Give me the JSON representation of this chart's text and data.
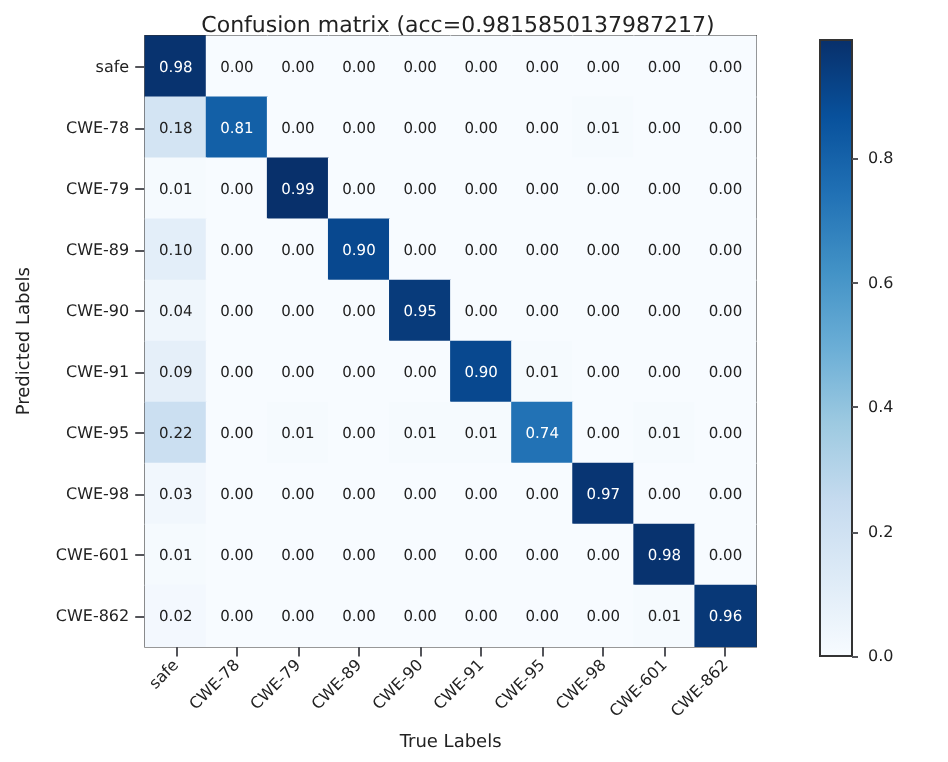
{
  "chart_data": {
    "type": "heatmap",
    "title": "Confusion matrix (acc=0.9815850137987217)",
    "xlabel": "True Labels",
    "ylabel": "Predicted Labels",
    "categories": [
      "safe",
      "CWE-78",
      "CWE-79",
      "CWE-89",
      "CWE-90",
      "CWE-91",
      "CWE-95",
      "CWE-98",
      "CWE-601",
      "CWE-862"
    ],
    "y_categories": [
      "safe",
      "CWE-78",
      "CWE-79",
      "CWE-89",
      "CWE-90",
      "CWE-91",
      "CWE-95",
      "CWE-98",
      "CWE-601",
      "CWE-862"
    ],
    "cells": [
      [
        0.98,
        0,
        0,
        0,
        0,
        0,
        0,
        0,
        0,
        0
      ],
      [
        0.18,
        0.81,
        0,
        0,
        0,
        0,
        0,
        0.01,
        0,
        0
      ],
      [
        0.01,
        0,
        0.99,
        0,
        0,
        0,
        0,
        0,
        0,
        0
      ],
      [
        0.1,
        0,
        0,
        0.9,
        0,
        0,
        0,
        0,
        0,
        0
      ],
      [
        0.04,
        0,
        0,
        0,
        0.95,
        0,
        0,
        0,
        0,
        0
      ],
      [
        0.09,
        0,
        0,
        0,
        0,
        0.9,
        0.01,
        0,
        0,
        0
      ],
      [
        0.22,
        0,
        0.01,
        0,
        0.01,
        0.01,
        0.74,
        0,
        0.01,
        0
      ],
      [
        0.03,
        0,
        0,
        0,
        0,
        0,
        0,
        0.97,
        0,
        0
      ],
      [
        0.01,
        0,
        0,
        0,
        0,
        0,
        0,
        0,
        0.98,
        0
      ],
      [
        0.02,
        0,
        0,
        0,
        0,
        0,
        0,
        0,
        0.01,
        0.96
      ]
    ],
    "cell_labels": [
      [
        "0.98",
        "0.00",
        "0.00",
        "0.00",
        "0.00",
        "0.00",
        "0.00",
        "0.00",
        "0.00",
        "0.00"
      ],
      [
        "0.18",
        "0.81",
        "0.00",
        "0.00",
        "0.00",
        "0.00",
        "0.00",
        "0.01",
        "0.00",
        "0.00"
      ],
      [
        "0.01",
        "0.00",
        "0.99",
        "0.00",
        "0.00",
        "0.00",
        "0.00",
        "0.00",
        "0.00",
        "0.00"
      ],
      [
        "0.10",
        "0.00",
        "0.00",
        "0.90",
        "0.00",
        "0.00",
        "0.00",
        "0.00",
        "0.00",
        "0.00"
      ],
      [
        "0.04",
        "0.00",
        "0.00",
        "0.00",
        "0.95",
        "0.00",
        "0.00",
        "0.00",
        "0.00",
        "0.00"
      ],
      [
        "0.09",
        "0.00",
        "0.00",
        "0.00",
        "0.00",
        "0.90",
        "0.01",
        "0.00",
        "0.00",
        "0.00"
      ],
      [
        "0.22",
        "0.00",
        "0.01",
        "0.00",
        "0.01",
        "0.01",
        "0.74",
        "0.00",
        "0.01",
        "0.00"
      ],
      [
        "0.03",
        "0.00",
        "0.00",
        "0.00",
        "0.00",
        "0.00",
        "0.00",
        "0.97",
        "0.00",
        "0.00"
      ],
      [
        "0.01",
        "0.00",
        "0.00",
        "0.00",
        "0.00",
        "0.00",
        "0.00",
        "0.00",
        "0.98",
        "0.00"
      ],
      [
        "0.02",
        "0.00",
        "0.00",
        "0.00",
        "0.00",
        "0.00",
        "0.00",
        "0.00",
        "0.01",
        "0.96"
      ]
    ],
    "clim": [
      0,
      0.99
    ],
    "cticks": [
      {
        "value": 0,
        "label": "0.0"
      },
      {
        "value": 0.2,
        "label": "0.2"
      },
      {
        "value": 0.4,
        "label": "0.4"
      },
      {
        "value": 0.6,
        "label": "0.6"
      },
      {
        "value": 0.8,
        "label": "0.8"
      }
    ]
  }
}
